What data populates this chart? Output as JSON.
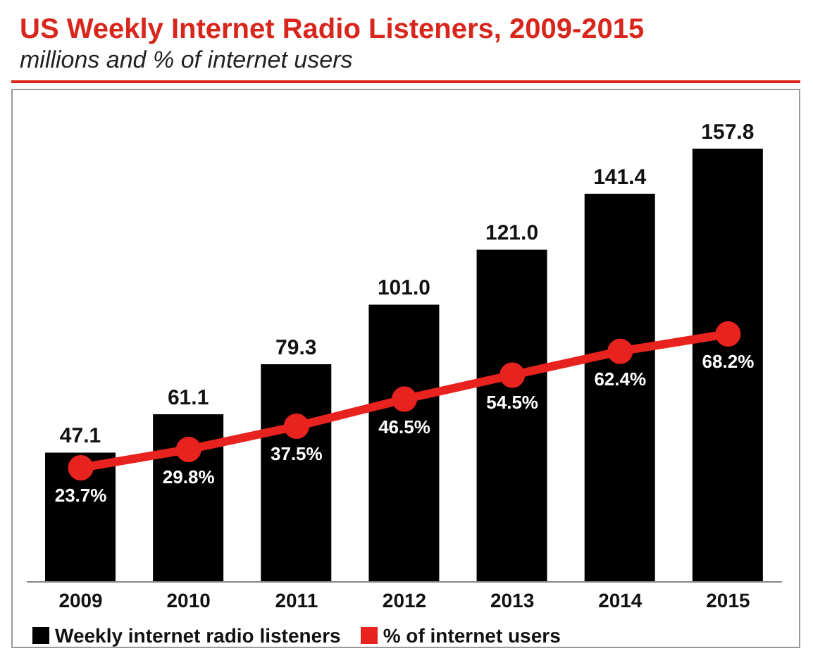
{
  "chart_data": {
    "type": "bar",
    "title": "US Weekly Internet Radio Listeners, 2009-2015",
    "subtitle": "millions and % of internet users",
    "categories": [
      "2009",
      "2010",
      "2011",
      "2012",
      "2013",
      "2014",
      "2015"
    ],
    "series": [
      {
        "name": "Weekly internet radio listeners",
        "color": "#000000",
        "values": [
          47.1,
          61.1,
          79.3,
          101.0,
          121.0,
          141.4,
          157.8
        ],
        "value_labels": [
          "47.1",
          "61.1",
          "79.3",
          "101.0",
          "121.0",
          "141.4",
          "157.8"
        ]
      },
      {
        "name": "% of internet users",
        "type": "line",
        "axis": "y2",
        "color": "#e8231f",
        "marker": "circle",
        "values": [
          23.7,
          29.8,
          37.5,
          46.5,
          54.5,
          62.4,
          68.2
        ],
        "value_labels": [
          "23.7%",
          "29.8%",
          "37.5%",
          "46.5%",
          "54.5%",
          "62.4%",
          "68.2%"
        ]
      }
    ],
    "tick_labels": "x",
    "legend": "bottom"
  }
}
